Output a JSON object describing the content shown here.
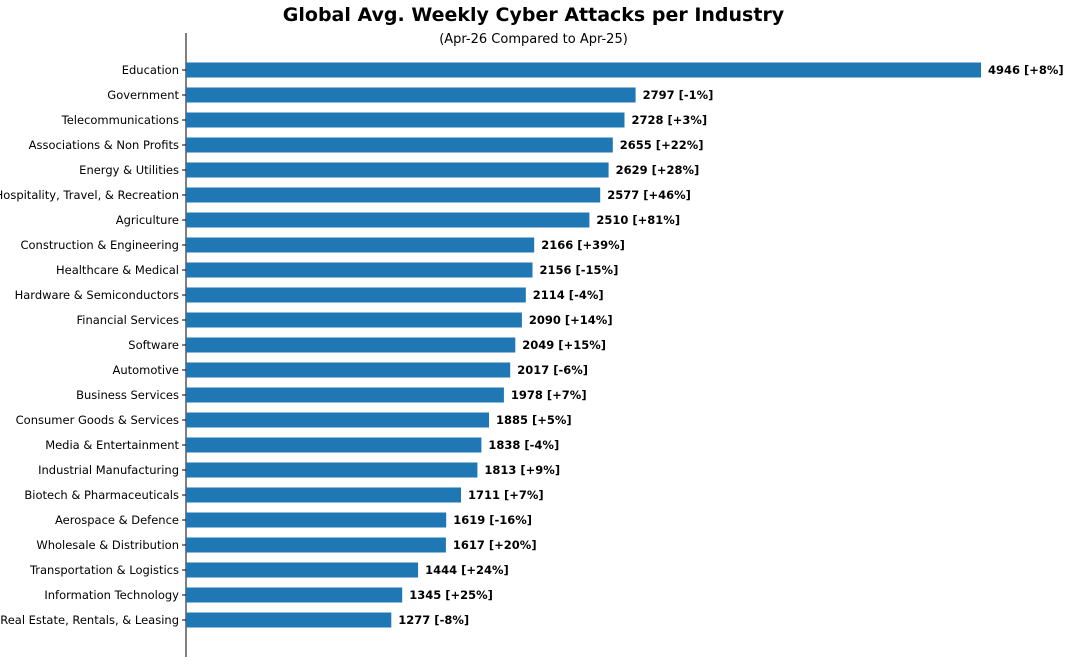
{
  "chart_data": {
    "type": "bar",
    "orientation": "horizontal",
    "title": "Global Avg. Weekly Cyber Attacks per Industry",
    "subtitle": "(Apr-26 Compared to Apr-25)",
    "xlabel": "",
    "ylabel": "",
    "xlim": [
      0,
      5000
    ],
    "grid": false,
    "bar_color": "#1f77b4",
    "categories": [
      "Education",
      "Government",
      "Telecommunications",
      "Associations & Non Profits",
      "Energy & Utilities",
      "Hospitality, Travel, & Recreation",
      "Agriculture",
      "Construction & Engineering",
      "Healthcare & Medical",
      "Hardware & Semiconductors",
      "Financial Services",
      "Software",
      "Automotive",
      "Business Services",
      "Consumer Goods & Services",
      "Media & Entertainment",
      "Industrial Manufacturing",
      "Biotech & Pharmaceuticals",
      "Aerospace & Defence",
      "Wholesale & Distribution",
      "Transportation & Logistics",
      "Information Technology",
      "Real Estate, Rentals, & Leasing"
    ],
    "values": [
      4946,
      2797,
      2728,
      2655,
      2629,
      2577,
      2510,
      2166,
      2156,
      2114,
      2090,
      2049,
      2017,
      1978,
      1885,
      1838,
      1813,
      1711,
      1619,
      1617,
      1444,
      1345,
      1277
    ],
    "data_labels": [
      "4946 [+8%]",
      "2797 [-1%]",
      "2728 [+3%]",
      "2655 [+22%]",
      "2629 [+28%]",
      "2577 [+46%]",
      "2510 [+81%]",
      "2166 [+39%]",
      "2156 [-15%]",
      "2114 [-4%]",
      "2090 [+14%]",
      "2049 [+15%]",
      "2017 [-6%]",
      "1978 [+7%]",
      "1885 [+5%]",
      "1838 [-4%]",
      "1813 [+9%]",
      "1711 [+7%]",
      "1619 [-16%]",
      "1617 [+20%]",
      "1444 [+24%]",
      "1345 [+25%]",
      "1277 [-8%]"
    ]
  }
}
